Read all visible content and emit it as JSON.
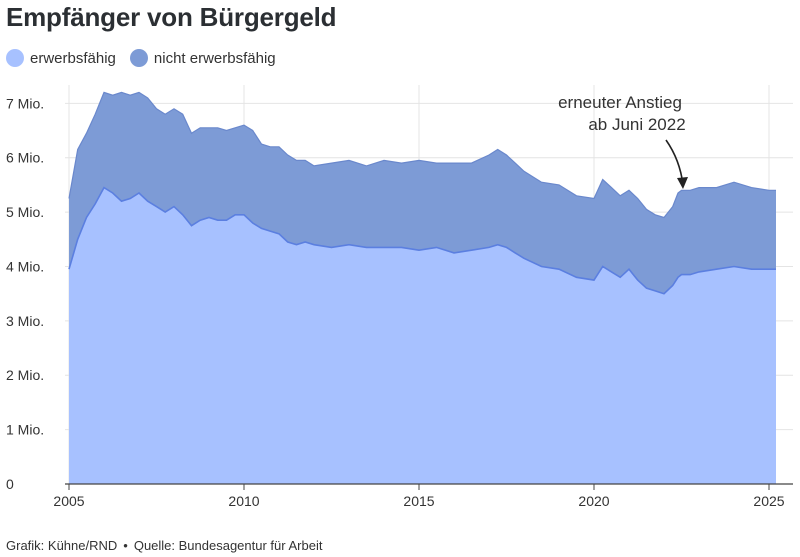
{
  "title": "Empfänger von Bürgergeld",
  "legend": [
    {
      "label": "erwerbsfähig",
      "color": "#a7c1ff"
    },
    {
      "label": "nicht erwerbsfähig",
      "color": "#7d9bd6"
    }
  ],
  "annotation": {
    "line1": "erneuter Anstieg",
    "line2": "ab Juni 2022"
  },
  "footer": {
    "credit": "Grafik: Kühne/RND",
    "bullet": "•",
    "source": "Quelle: Bundesagentur für Arbeit"
  },
  "chart_data": {
    "type": "area",
    "stacked": true,
    "xlim": [
      2005,
      2025.4
    ],
    "ylim": [
      0,
      7300000
    ],
    "x_ticks": [
      2005,
      2010,
      2015,
      2020,
      2025
    ],
    "x_tick_labels": [
      "2005",
      "2010",
      "2015",
      "2020",
      "2025"
    ],
    "y_ticks": [
      0,
      1000000,
      2000000,
      3000000,
      4000000,
      5000000,
      6000000,
      7000000
    ],
    "y_tick_labels": [
      "0",
      "1 Mio.",
      "2 Mio.",
      "3 Mio.",
      "4 Mio.",
      "5 Mio.",
      "6 Mio.",
      "7 Mio."
    ],
    "grid": true,
    "legend_position": "top-left",
    "x": [
      2005.0,
      2005.25,
      2005.5,
      2005.75,
      2006.0,
      2006.25,
      2006.5,
      2006.75,
      2007.0,
      2007.25,
      2007.5,
      2007.75,
      2008.0,
      2008.25,
      2008.5,
      2008.75,
      2009.0,
      2009.25,
      2009.5,
      2009.75,
      2010.0,
      2010.25,
      2010.5,
      2010.75,
      2011.0,
      2011.25,
      2011.5,
      2011.75,
      2012.0,
      2012.5,
      2013.0,
      2013.5,
      2014.0,
      2014.5,
      2015.0,
      2015.5,
      2016.0,
      2016.5,
      2017.0,
      2017.25,
      2017.5,
      2017.75,
      2018.0,
      2018.5,
      2019.0,
      2019.5,
      2020.0,
      2020.25,
      2020.5,
      2020.75,
      2021.0,
      2021.25,
      2021.5,
      2021.75,
      2022.0,
      2022.25,
      2022.4,
      2022.5,
      2022.75,
      2023.0,
      2023.5,
      2024.0,
      2024.5,
      2025.0,
      2025.2
    ],
    "series": [
      {
        "name": "erwerbsfähig",
        "color": "#a7c1ff",
        "values": [
          3950000,
          4500000,
          4900000,
          5150000,
          5450000,
          5350000,
          5200000,
          5250000,
          5350000,
          5200000,
          5100000,
          5000000,
          5100000,
          4950000,
          4750000,
          4850000,
          4900000,
          4850000,
          4850000,
          4950000,
          4950000,
          4800000,
          4700000,
          4650000,
          4600000,
          4450000,
          4400000,
          4450000,
          4400000,
          4350000,
          4400000,
          4350000,
          4350000,
          4350000,
          4300000,
          4350000,
          4250000,
          4300000,
          4350000,
          4400000,
          4350000,
          4250000,
          4150000,
          4000000,
          3950000,
          3800000,
          3750000,
          4000000,
          3900000,
          3800000,
          3950000,
          3750000,
          3600000,
          3550000,
          3500000,
          3650000,
          3800000,
          3850000,
          3850000,
          3900000,
          3950000,
          4000000,
          3950000,
          3950000,
          3950000
        ]
      },
      {
        "name": "nicht erwerbsfähig",
        "color": "#7d9bd6",
        "values": [
          1300000,
          1650000,
          1550000,
          1650000,
          1750000,
          1800000,
          2000000,
          1900000,
          1850000,
          1900000,
          1800000,
          1800000,
          1800000,
          1850000,
          1700000,
          1700000,
          1650000,
          1700000,
          1650000,
          1600000,
          1650000,
          1700000,
          1550000,
          1550000,
          1600000,
          1600000,
          1550000,
          1500000,
          1450000,
          1550000,
          1550000,
          1500000,
          1600000,
          1550000,
          1650000,
          1550000,
          1650000,
          1600000,
          1700000,
          1750000,
          1700000,
          1650000,
          1600000,
          1550000,
          1550000,
          1500000,
          1500000,
          1600000,
          1550000,
          1500000,
          1450000,
          1500000,
          1450000,
          1400000,
          1400000,
          1450000,
          1550000,
          1550000,
          1550000,
          1550000,
          1500000,
          1550000,
          1500000,
          1450000,
          1450000
        ]
      }
    ]
  }
}
